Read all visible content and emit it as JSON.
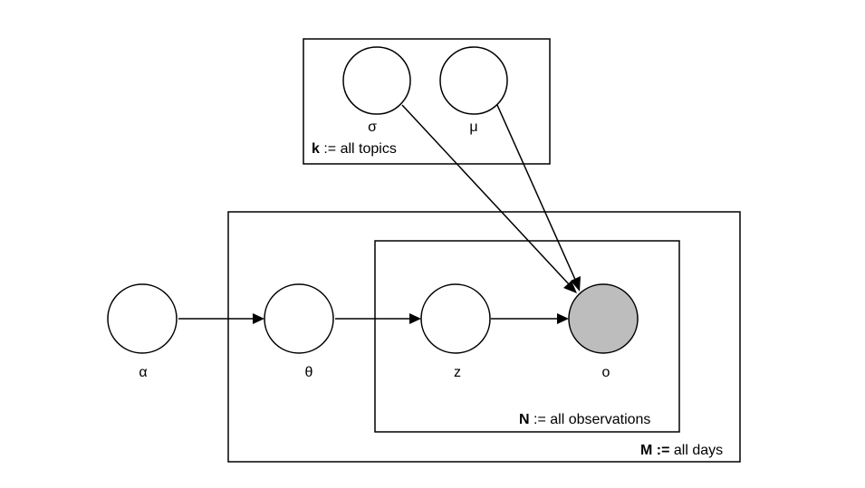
{
  "plates": {
    "topics": {
      "letter": "k",
      "text": " := all topics"
    },
    "days": {
      "letter": "M :=",
      "text": " all days"
    },
    "observations": {
      "letter": "N",
      "text": " := all observations"
    }
  },
  "nodes": {
    "sigma": {
      "label": "σ"
    },
    "mu": {
      "label": "μ"
    },
    "alpha": {
      "label": "α"
    },
    "theta": {
      "label": "θ"
    },
    "z": {
      "label": "z"
    },
    "o": {
      "label": "o"
    }
  },
  "colors": {
    "stroke": "#000000",
    "observed_fill": "#bdbdbd",
    "node_fill": "#ffffff"
  }
}
